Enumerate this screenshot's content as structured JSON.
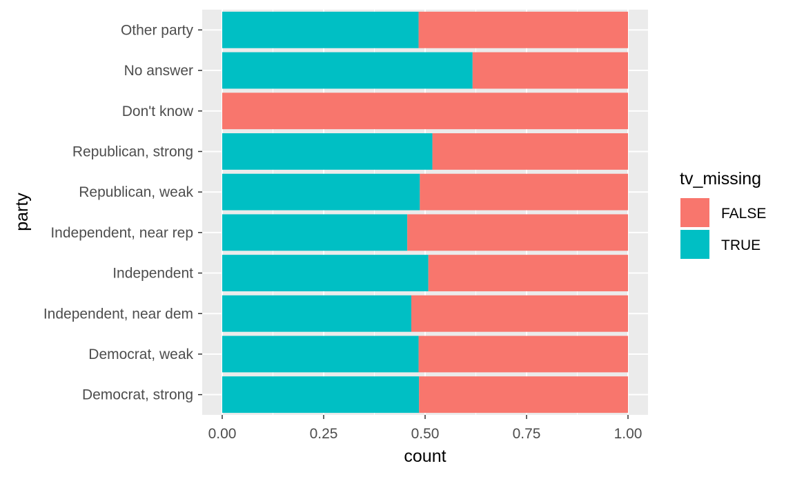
{
  "chart_data": {
    "type": "bar",
    "orientation": "horizontal",
    "stacked": true,
    "position": "fill",
    "title": "",
    "xlabel": "count",
    "ylabel": "party",
    "xlim": [
      0,
      1
    ],
    "x_ticks": [
      "0.00",
      "0.25",
      "0.50",
      "0.75",
      "1.00"
    ],
    "x_tick_values": [
      0,
      0.25,
      0.5,
      0.75,
      1.0
    ],
    "categories": [
      "Democrat, strong",
      "Democrat, weak",
      "Independent, near dem",
      "Independent",
      "Independent, near rep",
      "Republican, weak",
      "Republican, strong",
      "Don't know",
      "No answer",
      "Other party"
    ],
    "series": [
      {
        "name": "TRUE",
        "color": "#00BFC4",
        "values": [
          0.485,
          0.484,
          0.466,
          0.508,
          0.456,
          0.487,
          0.518,
          0.0,
          0.617,
          0.484
        ]
      },
      {
        "name": "FALSE",
        "color": "#F8766D",
        "values": [
          0.515,
          0.516,
          0.534,
          0.492,
          0.544,
          0.513,
          0.482,
          1.0,
          0.383,
          0.516
        ]
      }
    ],
    "legend": {
      "title": "tv_missing",
      "placement": "right",
      "entries": [
        {
          "label": "FALSE",
          "color": "#F8766D"
        },
        {
          "label": "TRUE",
          "color": "#00BFC4"
        }
      ]
    },
    "grid": true,
    "panel_background": "#EBEBEB",
    "grid_color": "#FFFFFF"
  }
}
